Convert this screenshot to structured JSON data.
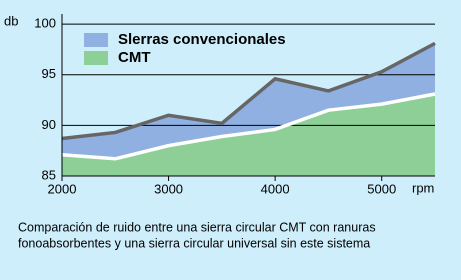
{
  "chart_data": {
    "type": "area",
    "x": [
      2000,
      2500,
      3000,
      3500,
      4000,
      4500,
      5000,
      5500
    ],
    "series": [
      {
        "name": "Slerras convencionales",
        "color": "#8fb0e0",
        "line_color": "#666666",
        "values": [
          88.7,
          89.3,
          91.0,
          90.2,
          94.6,
          93.4,
          95.3,
          98.1
        ]
      },
      {
        "name": "CMT",
        "color": "#8ecf98",
        "line_color": "#ffffff",
        "values": [
          87.1,
          86.7,
          88.0,
          88.9,
          89.6,
          91.5,
          92.1,
          93.1
        ]
      }
    ],
    "xlim": [
      2000,
      5500
    ],
    "xticks": [
      2000,
      3000,
      4000,
      5000
    ],
    "ylim": [
      85,
      101
    ],
    "yticks": [
      85,
      90,
      95,
      100
    ],
    "y_unit": "db",
    "x_unit": "rpm",
    "caption": [
      "Comparación de ruido entre una sierra circular CMT con ranuras",
      "fonoabsorbentes y una sierra circular universal  sin este sistema"
    ]
  }
}
